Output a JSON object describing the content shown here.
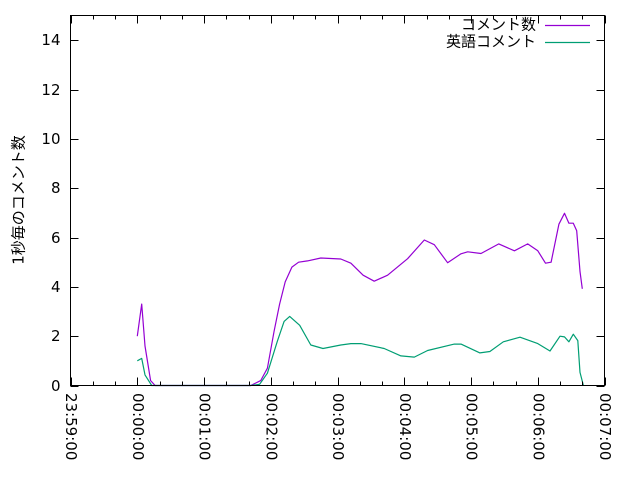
{
  "chart_data": {
    "type": "line",
    "title": "",
    "xlabel": "",
    "ylabel": "1秒毎のコメント数",
    "xlim": [
      "23:59:00",
      "00:07:00"
    ],
    "ylim": [
      0,
      15
    ],
    "x_ticks": [
      "23:59:00",
      "00:00:00",
      "00:01:00",
      "00:02:00",
      "00:03:00",
      "00:04:00",
      "00:05:00",
      "00:06:00",
      "00:07:00"
    ],
    "y_ticks": [
      0,
      2,
      4,
      6,
      8,
      10,
      12,
      14
    ],
    "grid": false,
    "legend": "top-right",
    "series": [
      {
        "name": "コメント数",
        "color": "#9400d3",
        "points": [
          [
            "00:00:00",
            2.0
          ],
          [
            "00:00:04",
            3.3
          ],
          [
            "00:00:07",
            1.6
          ],
          [
            "00:00:12",
            0.2
          ],
          [
            "00:00:16",
            0
          ],
          [
            "00:01:42",
            0
          ],
          [
            "00:01:51",
            0.2
          ],
          [
            "00:01:57",
            0.7
          ],
          [
            "00:02:03",
            2.2
          ],
          [
            "00:02:08",
            3.3
          ],
          [
            "00:02:13",
            4.2
          ],
          [
            "00:02:19",
            4.8
          ],
          [
            "00:02:25",
            5.0
          ],
          [
            "00:02:33",
            5.05
          ],
          [
            "00:02:45",
            5.17
          ],
          [
            "00:03:03",
            5.13
          ],
          [
            "00:03:12",
            4.96
          ],
          [
            "00:03:23",
            4.47
          ],
          [
            "00:03:33",
            4.23
          ],
          [
            "00:03:45",
            4.47
          ],
          [
            "00:04:03",
            5.14
          ],
          [
            "00:04:18",
            5.9
          ],
          [
            "00:04:27",
            5.71
          ],
          [
            "00:04:39",
            4.98
          ],
          [
            "00:04:51",
            5.34
          ],
          [
            "00:04:57",
            5.42
          ],
          [
            "00:05:09",
            5.35
          ],
          [
            "00:05:25",
            5.74
          ],
          [
            "00:05:39",
            5.46
          ],
          [
            "00:05:51",
            5.74
          ],
          [
            "00:06:00",
            5.46
          ],
          [
            "00:06:07",
            4.96
          ],
          [
            "00:06:12",
            5.0
          ],
          [
            "00:06:19",
            6.54
          ],
          [
            "00:06:24",
            6.98
          ],
          [
            "00:06:28",
            6.58
          ],
          [
            "00:06:32",
            6.58
          ],
          [
            "00:06:35",
            6.27
          ],
          [
            "00:06:38",
            4.62
          ],
          [
            "00:06:40",
            3.92
          ]
        ]
      },
      {
        "name": "英語コメント",
        "color": "#009e73",
        "points": [
          [
            "00:00:00",
            1.0
          ],
          [
            "00:00:04",
            1.1
          ],
          [
            "00:00:07",
            0.43
          ],
          [
            "00:00:13",
            0
          ],
          [
            "00:01:42",
            0
          ],
          [
            "00:01:50",
            0.05
          ],
          [
            "00:01:57",
            0.5
          ],
          [
            "00:02:06",
            1.8
          ],
          [
            "00:02:12",
            2.6
          ],
          [
            "00:02:17",
            2.8
          ],
          [
            "00:02:26",
            2.44
          ],
          [
            "00:02:36",
            1.64
          ],
          [
            "00:02:47",
            1.5
          ],
          [
            "00:03:03",
            1.64
          ],
          [
            "00:03:12",
            1.7
          ],
          [
            "00:03:21",
            1.7
          ],
          [
            "00:03:42",
            1.5
          ],
          [
            "00:03:57",
            1.2
          ],
          [
            "00:04:09",
            1.15
          ],
          [
            "00:04:21",
            1.42
          ],
          [
            "00:04:45",
            1.68
          ],
          [
            "00:04:51",
            1.68
          ],
          [
            "00:05:08",
            1.32
          ],
          [
            "00:05:17",
            1.38
          ],
          [
            "00:05:29",
            1.77
          ],
          [
            "00:05:44",
            1.96
          ],
          [
            "00:06:00",
            1.7
          ],
          [
            "00:06:11",
            1.4
          ],
          [
            "00:06:20",
            2.0
          ],
          [
            "00:06:24",
            1.97
          ],
          [
            "00:06:28",
            1.77
          ],
          [
            "00:06:32",
            2.08
          ],
          [
            "00:06:36",
            1.82
          ],
          [
            "00:06:38",
            0.53
          ],
          [
            "00:06:41",
            0
          ]
        ]
      }
    ]
  }
}
